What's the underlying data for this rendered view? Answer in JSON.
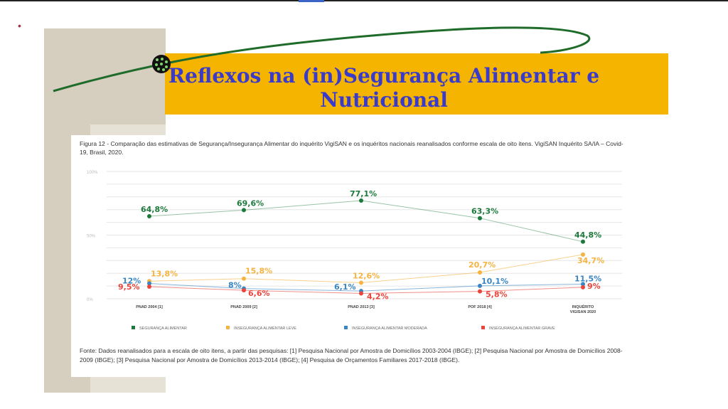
{
  "slide": {
    "bullet": "•",
    "title_line1": "Reflexos na (in)Segurança Alimentar e",
    "title_line2": "Nutricional"
  },
  "figure": {
    "caption": "Figura 12 - Comparação das estimativas de Segurança/Insegurança Alimentar do inquérito VigiSAN e os inquéritos nacionais reanalisados conforme escala de oito itens. VigiSAN Inquérito SA/IA – Covid-19, Brasil, 2020.",
    "source": "Fonte: Dados reanalisados para a escala de oito itens, a partir das pesquisas: [1] Pesquisa Nacional por Amostra de Domicílios 2003-2004 (IBGE); [2] Pesquisa Nacional por Amostra de Domicílios 2008-2009 (IBGE); [3] Pesquisa Nacional por Amostra de Domicílios 2013-2014 (IBGE); [4] Pesquisa de Orçamentos Familiares 2017-2018 (IBGE)."
  },
  "chart_data": {
    "type": "line",
    "categories": [
      "PNAD 2004 [1]",
      "PNAD 2009 [2]",
      "PNAD 2013 [3]",
      "POF 2018 [4]",
      "INQUÉRITO VIGISAN 2020"
    ],
    "ytick_labels": [
      "100%",
      "50%",
      "0%"
    ],
    "ylim": [
      0,
      100
    ],
    "legend_position": "bottom",
    "grid": true,
    "series": [
      {
        "name": "SEGURANÇA ALIMENTAR",
        "color": "#1e7a3c",
        "values": [
          64.8,
          69.6,
          77.1,
          63.3,
          44.8
        ],
        "labels": [
          "64,8%",
          "69,6%",
          "77,1%",
          "63,3%",
          "44,8%"
        ]
      },
      {
        "name": "INSEGURANÇA ALIMENTAR LEVE",
        "color": "#f5b342",
        "values": [
          13.8,
          15.8,
          12.6,
          20.7,
          34.7
        ],
        "labels": [
          "13,8%",
          "15,8%",
          "12,6%",
          "20,7%",
          "34,7%"
        ]
      },
      {
        "name": "INSEGURANÇA ALIMENTAR MODERADA",
        "color": "#3a86c4",
        "values": [
          12,
          8,
          6.1,
          10.1,
          11.5
        ],
        "labels": [
          "12%",
          "8%",
          "6,1%",
          "10,1%",
          "11,5%"
        ]
      },
      {
        "name": "INSEGURANÇA ALIMENTAR GRAVE",
        "color": "#e8453c",
        "values": [
          9.5,
          6.6,
          4.2,
          5.8,
          9
        ],
        "labels": [
          "9,5%",
          "6,6%",
          "4,2%",
          "5,8%",
          "9%"
        ]
      }
    ]
  }
}
